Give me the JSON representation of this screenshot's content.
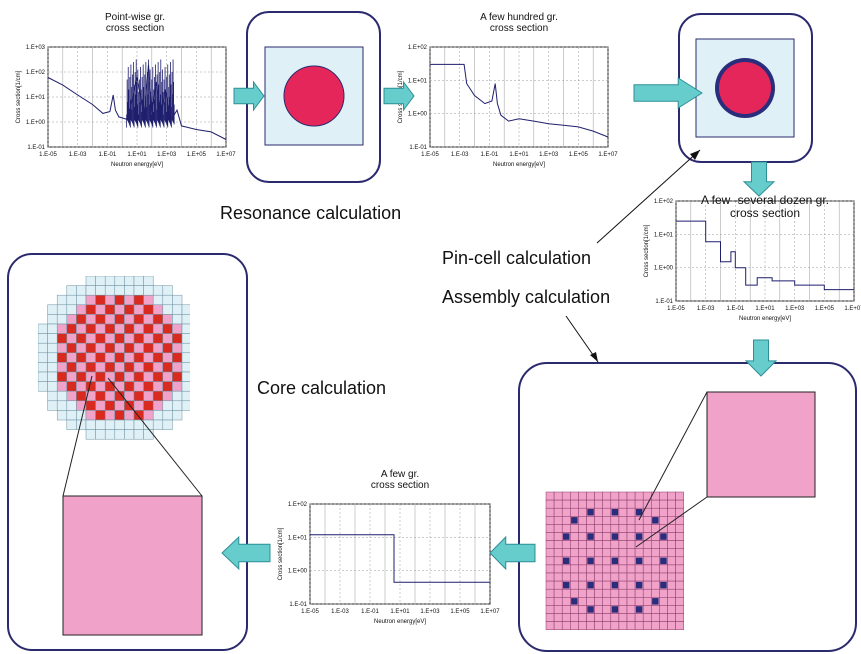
{
  "labels": {
    "resonance": "Resonance calculation",
    "pin_cell": "Pin-cell calculation",
    "assembly": "Assembly calculation",
    "core": "Core calculation"
  },
  "colors": {
    "box_border": "#2b2a6e",
    "arrow_fill": "#66cccc",
    "arrow_stroke": "#2f8f96",
    "pale_blue": "#dff1f7",
    "fuel_red": "#e5265a",
    "clad_blue": "#2a2d7c",
    "pink": "#f0a2c8",
    "core_red": "#d92a20",
    "curve": "#1f1f6e"
  },
  "chart_data": [
    {
      "type": "line",
      "title": "Point-wise gr.\ncross section",
      "xlabel": "Neutron energy[eV]",
      "ylabel": "Cross section[1/cm]",
      "x_scale": "log",
      "y_scale": "log",
      "xlim": [
        1e-05,
        10000000.0
      ],
      "ylim": [
        0.1,
        1000
      ],
      "x_ticks": [
        "1.E-05",
        "1.E-03",
        "1.E-01",
        "1.E+01",
        "1.E+03",
        "1.E+05",
        "1.E+07"
      ],
      "y_ticks": [
        "1.E-01",
        "1.E+00",
        "1.E+01",
        "1.E+02",
        "1.E+03"
      ],
      "series": [
        {
          "points": [
            [
              1e-05,
              60
            ],
            [
              0.0001,
              30
            ],
            [
              0.001,
              12
            ],
            [
              0.01,
              5
            ],
            [
              0.05,
              2.2
            ],
            [
              0.15,
              2.6
            ],
            [
              0.25,
              12
            ],
            [
              0.35,
              3
            ],
            [
              0.6,
              1.6
            ],
            [
              2,
              1.3
            ],
            [
              5,
              8
            ],
            [
              10,
              60
            ],
            [
              30,
              2
            ],
            [
              60,
              200
            ],
            [
              100,
              2
            ],
            [
              200,
              40
            ],
            [
              400,
              1.5
            ],
            [
              800,
              20
            ],
            [
              2000,
              1.2
            ],
            [
              5000,
              3
            ],
            [
              10000.0,
              0.7
            ],
            [
              100000.0,
              0.5
            ],
            [
              1000000.0,
              0.4
            ],
            [
              10000000.0,
              0.2
            ]
          ]
        }
      ]
    },
    {
      "type": "line",
      "title": "A few hundred gr.\ncross section",
      "xlabel": "Neutron energy[eV]",
      "ylabel": "Cross section[1/cm]",
      "x_scale": "log",
      "y_scale": "log",
      "xlim": [
        1e-05,
        10000000.0
      ],
      "ylim": [
        0.1,
        100
      ],
      "x_ticks": [
        "1.E-05",
        "1.E-03",
        "1.E-01",
        "1.E+01",
        "1.E+03",
        "1.E+05",
        "1.E+07"
      ],
      "y_ticks": [
        "1.E-01",
        "1.E+00",
        "1.E+01",
        "1.E+02"
      ],
      "series": [
        {
          "points": [
            [
              1e-05,
              30
            ],
            [
              0.002,
              30
            ],
            [
              0.003,
              8
            ],
            [
              0.01,
              3.5
            ],
            [
              0.05,
              2
            ],
            [
              0.15,
              2.4
            ],
            [
              0.25,
              8
            ],
            [
              0.35,
              2
            ],
            [
              0.6,
              0.9
            ],
            [
              2,
              0.6
            ],
            [
              10,
              0.7
            ],
            [
              100,
              0.6
            ],
            [
              1000.0,
              0.5
            ],
            [
              10000.0,
              0.45
            ],
            [
              100000.0,
              0.4
            ],
            [
              1000000.0,
              0.3
            ],
            [
              10000000.0,
              0.2
            ]
          ]
        }
      ]
    },
    {
      "type": "line",
      "title": "A few -several dozen gr.\ncross section",
      "xlabel": "Neutron energy[eV]",
      "ylabel": "Cross section[1/cm]",
      "x_scale": "log",
      "y_scale": "log",
      "xlim": [
        1e-05,
        10000000.0
      ],
      "ylim": [
        0.1,
        100
      ],
      "x_ticks": [
        "1.E-05",
        "1.E-03",
        "1.E-01",
        "1.E+01",
        "1.E+03",
        "1.E+05",
        "1.E+07"
      ],
      "y_ticks": [
        "1.E-01",
        "1.E+00",
        "1.E+01",
        "1.E+02"
      ],
      "series": [
        {
          "points": [
            [
              1e-05,
              25
            ],
            [
              0.001,
              25
            ],
            [
              0.001,
              6
            ],
            [
              0.01,
              6
            ],
            [
              0.01,
              1.5
            ],
            [
              0.05,
              1.5
            ],
            [
              0.05,
              3
            ],
            [
              0.1,
              3
            ],
            [
              0.1,
              1
            ],
            [
              0.5,
              1
            ],
            [
              0.5,
              0.3
            ],
            [
              3,
              0.3
            ],
            [
              3,
              0.5
            ],
            [
              30,
              0.5
            ],
            [
              30,
              0.4
            ],
            [
              1000,
              0.4
            ],
            [
              1000,
              0.3
            ],
            [
              100000.0,
              0.3
            ],
            [
              100000.0,
              0.22
            ],
            [
              10000000.0,
              0.22
            ]
          ]
        }
      ]
    },
    {
      "type": "line",
      "title": "A few gr.\ncross section",
      "xlabel": "Neutron energy[eV]",
      "ylabel": "Cross section[1/cm]",
      "x_scale": "log",
      "y_scale": "log",
      "xlim": [
        1e-05,
        10000000.0
      ],
      "ylim": [
        0.1,
        100
      ],
      "x_ticks": [
        "1.E-05",
        "1.E-03",
        "1.E-01",
        "1.E+01",
        "1.E+03",
        "1.E+05",
        "1.E+07"
      ],
      "y_ticks": [
        "1.E-01",
        "1.E+00",
        "1.E+01",
        "1.E+02"
      ],
      "series": [
        {
          "points": [
            [
              1e-05,
              12
            ],
            [
              4,
              12
            ],
            [
              4,
              0.45
            ],
            [
              10000000.0,
              0.45
            ]
          ]
        }
      ]
    }
  ]
}
